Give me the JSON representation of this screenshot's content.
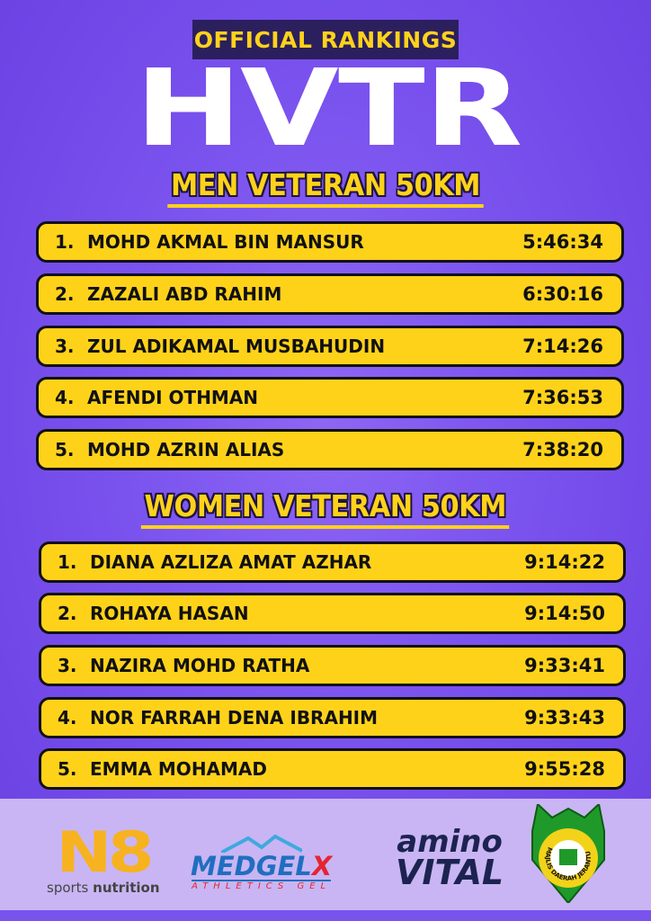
{
  "header": {
    "badge": "OFFICIAL RANKINGS",
    "logo": "HVTR"
  },
  "men": {
    "title": "MEN VETERAN 50KM",
    "results": [
      {
        "rank": "1.",
        "name": "MOHD AKMAL BIN MANSUR",
        "time": "5:46:34"
      },
      {
        "rank": "2.",
        "name": "ZAZALI ABD RAHIM",
        "time": "6:30:16"
      },
      {
        "rank": "3.",
        "name": "ZUL ADIKAMAL MUSBAHUDIN",
        "time": "7:14:26"
      },
      {
        "rank": "4.",
        "name": "AFENDI OTHMAN",
        "time": "7:36:53"
      },
      {
        "rank": "5.",
        "name": "MOHD AZRIN ALIAS",
        "time": "7:38:20"
      }
    ]
  },
  "women": {
    "title": "WOMEN VETERAN 50KM",
    "results": [
      {
        "rank": "1.",
        "name": "DIANA AZLIZA AMAT AZHAR",
        "time": "9:14:22"
      },
      {
        "rank": "2.",
        "name": "ROHAYA HASAN",
        "time": "9:14:50"
      },
      {
        "rank": "3.",
        "name": "NAZIRA MOHD RATHA",
        "time": "9:33:41"
      },
      {
        "rank": "4.",
        "name": "NOR FARRAH DENA IBRAHIM",
        "time": "9:33:43"
      },
      {
        "rank": "5.",
        "name": "EMMA MOHAMAD",
        "time": "9:55:28"
      }
    ]
  },
  "sponsors": [
    {
      "mark": "N8",
      "tagline_light": "sports ",
      "tagline_bold": "nutrition"
    },
    {
      "mark_main": "MEDGEL",
      "mark_x": "X",
      "tagline": "ATHLETICS GEL"
    },
    {
      "line1": "amino",
      "line2": "VITAL"
    },
    {
      "text": "MAJLIS DAERAH JERANTUT"
    }
  ],
  "colors": {
    "background": "#7a52ee",
    "row": "#ffd21a",
    "badge": "#2b1f5e",
    "footer": "#c9b5f3"
  }
}
